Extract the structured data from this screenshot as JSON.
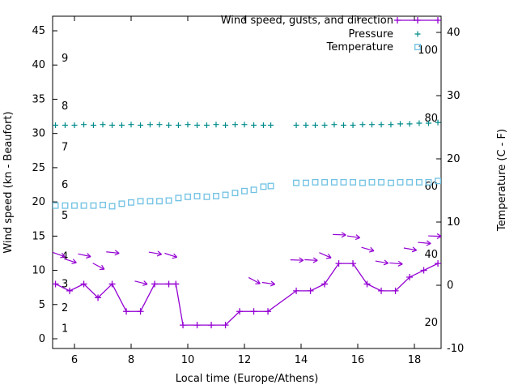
{
  "colors": {
    "wind": "#9400D3",
    "pressure": "#008B8B",
    "temperature": "#6FC1E3",
    "foreground": "#000000",
    "background": "#FFFFFF"
  },
  "chart_data": {
    "type": "line",
    "title": "",
    "xlabel": "Local time (Europe/Athens)",
    "ylabel_left": "Wind speed (kn - Beaufort)",
    "ylabel_right": "Temperature (C - F)",
    "axes": {
      "x": {
        "title": "Local time (Europe/Athens)",
        "ticks": [
          6,
          8,
          10,
          12,
          14,
          16,
          18
        ],
        "range": [
          5.23,
          18.94
        ]
      },
      "left": {
        "title": "Wind speed (kn - Beaufort)",
        "ticks": [
          0,
          5,
          10,
          15,
          20,
          25,
          30,
          35,
          40,
          45
        ],
        "range": [
          -1.4,
          47.1
        ]
      },
      "right": {
        "title": "Temperature (C - F)",
        "ticks": [
          -10,
          0,
          10,
          20,
          30,
          40
        ],
        "range": [
          -10,
          42.6
        ]
      }
    },
    "beaufort_scale": {
      "columns": [
        "beaufort",
        "knots"
      ],
      "values": [
        [
          1,
          1.5
        ],
        [
          2,
          4.5
        ],
        [
          3,
          8
        ],
        [
          4,
          12
        ],
        [
          5,
          18
        ],
        [
          6,
          22.5
        ],
        [
          7,
          28
        ],
        [
          8,
          34
        ],
        [
          9,
          41
        ]
      ]
    },
    "fahrenheit_scale": [
      100,
      80,
      60,
      40,
      20
    ],
    "legend": {
      "items": [
        {
          "label": "Wind speed, gusts, and direction",
          "series": "wind"
        },
        {
          "label": "Pressure",
          "series": "pressure"
        },
        {
          "label": "Temperature",
          "series": "temperature"
        }
      ]
    },
    "series": {
      "wind": {
        "name": "Wind speed, gusts, and direction",
        "axis": "left",
        "style": "linespoints-plus",
        "columns": [
          "hour",
          "knots"
        ],
        "points": [
          [
            5.33,
            8
          ],
          [
            5.83,
            7
          ],
          [
            6.33,
            8
          ],
          [
            6.83,
            6
          ],
          [
            7.33,
            8
          ],
          [
            7.83,
            4
          ],
          [
            8.33,
            4
          ],
          [
            8.83,
            8
          ],
          [
            9.33,
            8
          ],
          [
            9.58,
            8
          ],
          [
            9.83,
            2
          ],
          [
            10.33,
            2
          ],
          [
            10.83,
            2
          ],
          [
            11.33,
            2
          ],
          [
            11.83,
            4
          ],
          [
            12.33,
            4
          ],
          [
            12.83,
            4
          ],
          [
            13.83,
            7
          ],
          [
            14.33,
            7
          ],
          [
            14.83,
            8
          ],
          [
            15.33,
            11
          ],
          [
            15.83,
            11
          ],
          [
            16.33,
            8
          ],
          [
            16.83,
            7
          ],
          [
            17.33,
            7
          ],
          [
            17.83,
            9
          ],
          [
            18.33,
            10
          ],
          [
            18.83,
            11
          ]
        ]
      },
      "pressure": {
        "name": "Pressure",
        "axis": "left",
        "style": "points-plus",
        "columns": [
          "hour",
          "level"
        ],
        "points": [
          [
            5.33,
            31.2
          ],
          [
            5.67,
            31.2
          ],
          [
            6.0,
            31.2
          ],
          [
            6.33,
            31.3
          ],
          [
            6.67,
            31.2
          ],
          [
            7.0,
            31.3
          ],
          [
            7.33,
            31.2
          ],
          [
            7.67,
            31.2
          ],
          [
            8.0,
            31.3
          ],
          [
            8.33,
            31.2
          ],
          [
            8.67,
            31.3
          ],
          [
            9.0,
            31.3
          ],
          [
            9.33,
            31.2
          ],
          [
            9.67,
            31.2
          ],
          [
            10.0,
            31.3
          ],
          [
            10.33,
            31.2
          ],
          [
            10.67,
            31.2
          ],
          [
            11.0,
            31.3
          ],
          [
            11.33,
            31.2
          ],
          [
            11.67,
            31.3
          ],
          [
            12.0,
            31.3
          ],
          [
            12.33,
            31.2
          ],
          [
            12.67,
            31.2
          ],
          [
            12.93,
            31.2
          ],
          [
            13.83,
            31.2
          ],
          [
            14.17,
            31.2
          ],
          [
            14.5,
            31.2
          ],
          [
            14.83,
            31.2
          ],
          [
            15.17,
            31.3
          ],
          [
            15.5,
            31.2
          ],
          [
            15.83,
            31.2
          ],
          [
            16.17,
            31.3
          ],
          [
            16.5,
            31.3
          ],
          [
            16.83,
            31.3
          ],
          [
            17.17,
            31.3
          ],
          [
            17.5,
            31.4
          ],
          [
            17.83,
            31.4
          ],
          [
            18.17,
            31.5
          ],
          [
            18.5,
            31.5
          ],
          [
            18.83,
            31.6
          ]
        ]
      },
      "temperature": {
        "name": "Temperature",
        "axis": "right",
        "style": "points-square",
        "columns": [
          "hour",
          "celsius"
        ],
        "points": [
          [
            5.33,
            12.6
          ],
          [
            5.67,
            12.6
          ],
          [
            6.0,
            12.6
          ],
          [
            6.33,
            12.6
          ],
          [
            6.67,
            12.6
          ],
          [
            7.0,
            12.7
          ],
          [
            7.33,
            12.5
          ],
          [
            7.67,
            12.9
          ],
          [
            8.0,
            13.1
          ],
          [
            8.33,
            13.3
          ],
          [
            8.67,
            13.3
          ],
          [
            9.0,
            13.3
          ],
          [
            9.33,
            13.4
          ],
          [
            9.67,
            13.8
          ],
          [
            10.0,
            14.0
          ],
          [
            10.33,
            14.1
          ],
          [
            10.67,
            14.0
          ],
          [
            11.0,
            14.1
          ],
          [
            11.33,
            14.3
          ],
          [
            11.67,
            14.6
          ],
          [
            12.0,
            14.9
          ],
          [
            12.33,
            15.1
          ],
          [
            12.67,
            15.6
          ],
          [
            12.93,
            15.7
          ],
          [
            13.83,
            16.2
          ],
          [
            14.17,
            16.2
          ],
          [
            14.5,
            16.3
          ],
          [
            14.83,
            16.3
          ],
          [
            15.17,
            16.3
          ],
          [
            15.5,
            16.3
          ],
          [
            15.83,
            16.3
          ],
          [
            16.17,
            16.2
          ],
          [
            16.5,
            16.3
          ],
          [
            16.83,
            16.3
          ],
          [
            17.17,
            16.2
          ],
          [
            17.5,
            16.3
          ],
          [
            17.83,
            16.3
          ],
          [
            18.17,
            16.3
          ],
          [
            18.5,
            16.3
          ],
          [
            18.83,
            16.5
          ]
        ]
      }
    },
    "wind_gust_arrows": {
      "columns": [
        "hour",
        "knots",
        "angle_deg"
      ],
      "values": [
        [
          5.45,
          12.3,
          20
        ],
        [
          5.85,
          11.4,
          18
        ],
        [
          6.35,
          12.2,
          12
        ],
        [
          6.85,
          10.6,
          28
        ],
        [
          7.35,
          12.6,
          6
        ],
        [
          8.35,
          8.2,
          14
        ],
        [
          8.85,
          12.5,
          10
        ],
        [
          9.4,
          12.2,
          18
        ],
        [
          12.35,
          8.5,
          28
        ],
        [
          12.85,
          8.1,
          8
        ],
        [
          13.85,
          11.5,
          2
        ],
        [
          14.35,
          11.5,
          3
        ],
        [
          14.85,
          12.2,
          24
        ],
        [
          15.35,
          15.2,
          2
        ],
        [
          15.85,
          14.9,
          8
        ],
        [
          16.35,
          13.1,
          16
        ],
        [
          16.85,
          11.2,
          10
        ],
        [
          17.35,
          11.0,
          5
        ],
        [
          17.85,
          13.1,
          10
        ],
        [
          18.35,
          14.0,
          5
        ],
        [
          18.72,
          15.0,
          2
        ]
      ]
    }
  }
}
